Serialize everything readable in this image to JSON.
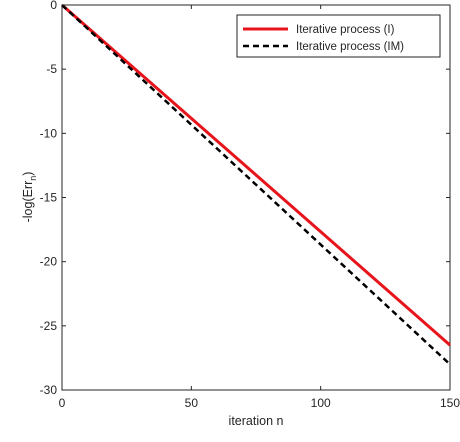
{
  "chart_data": {
    "type": "line",
    "title": "",
    "xlabel": "iteration n",
    "ylabel_main": "-log(Err",
    "ylabel_sub": "n",
    "ylabel_close": ")",
    "xlim": [
      0,
      150
    ],
    "ylim": [
      -30,
      0
    ],
    "xticks": [
      0,
      50,
      100,
      150
    ],
    "yticks": [
      0,
      -5,
      -10,
      -15,
      -20,
      -25,
      -30
    ],
    "xtick_labels": [
      "0",
      "50",
      "100",
      "150"
    ],
    "ytick_labels": [
      "0",
      "-5",
      "-10",
      "-15",
      "-20",
      "-25",
      "-30"
    ],
    "grid": false,
    "legend_position": "top-right",
    "series": [
      {
        "name": "Iterative process (I)",
        "color": "#e8141b",
        "style": "solid",
        "x": [
          0,
          150
        ],
        "y": [
          0,
          -26.5
        ]
      },
      {
        "name": "Iterative process (IM)",
        "color": "#000000",
        "style": "dashed",
        "x": [
          0,
          150
        ],
        "y": [
          0,
          -28
        ]
      }
    ]
  }
}
